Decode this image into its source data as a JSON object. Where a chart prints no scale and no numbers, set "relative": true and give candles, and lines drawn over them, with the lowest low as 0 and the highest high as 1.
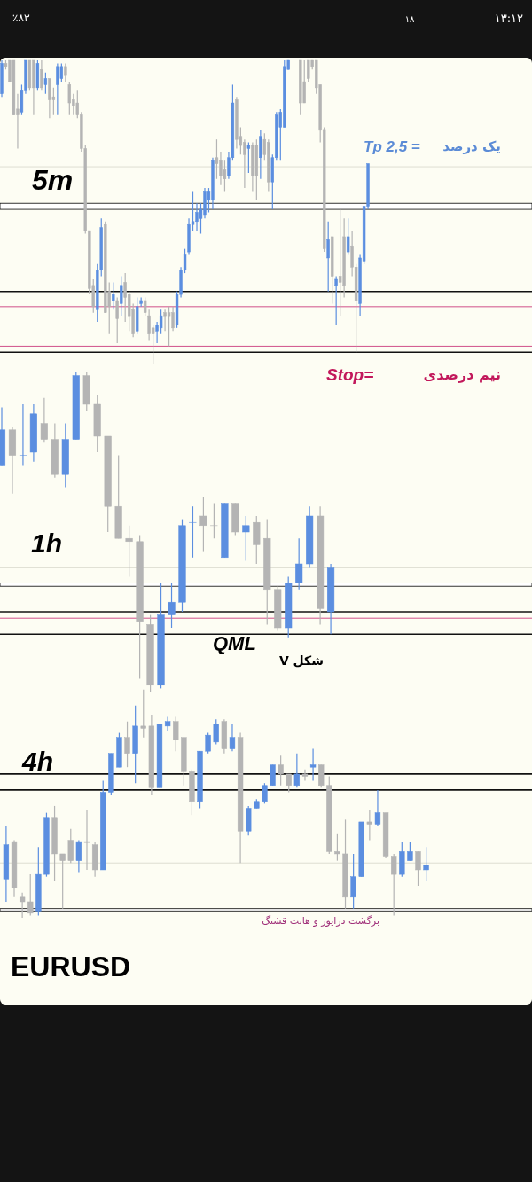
{
  "chart_data": [
    {
      "type": "candlestick",
      "title": "5m",
      "relative": true,
      "categories": [
        null,
        null,
        null,
        null,
        null,
        null,
        null,
        null,
        null,
        null,
        null,
        null,
        null,
        null,
        null,
        null,
        null,
        null,
        null,
        null,
        null,
        null,
        null,
        null,
        null,
        null,
        null,
        null,
        null,
        null,
        null,
        null,
        null,
        null,
        null,
        null,
        null,
        null,
        null,
        null,
        null,
        null,
        null,
        null,
        null,
        null,
        null,
        null,
        null,
        null,
        null,
        null,
        null,
        null,
        null,
        null,
        null,
        null,
        null,
        null,
        null,
        null,
        null,
        null,
        null,
        null,
        null,
        null,
        null,
        null,
        null,
        null,
        null,
        null,
        null,
        null,
        null,
        null,
        null,
        null,
        null,
        null,
        null,
        null,
        null,
        null,
        null,
        null,
        null,
        null,
        null,
        null,
        null
      ],
      "ohlc": [
        [
          0.89,
          1,
          0.88,
          0.99
        ],
        [
          0.99,
          1,
          0.97,
          0.98
        ],
        [
          1,
          1,
          0.93,
          0.93
        ],
        [
          1,
          1,
          0.82,
          0.82
        ],
        [
          0.84,
          0.89,
          0.71,
          0.82
        ],
        [
          0.83,
          0.92,
          0.82,
          0.9
        ],
        [
          0.9,
          1,
          0.89,
          1
        ],
        [
          1,
          1,
          0.9,
          0.91
        ],
        [
          1,
          1,
          0.82,
          0.91
        ],
        [
          0.91,
          1,
          0.9,
          0.99
        ],
        [
          0.97,
          1,
          0.9,
          0.91
        ],
        [
          0.92,
          0.96,
          0.89,
          0.94
        ],
        [
          0.94,
          0.94,
          0.81,
          0.87
        ],
        [
          0.88,
          0.91,
          0.82,
          0.87
        ],
        [
          0.92,
          0.99,
          0.82,
          0.98
        ],
        [
          0.94,
          0.99,
          0.93,
          0.98
        ],
        [
          0.98,
          0.99,
          0.93,
          0.95
        ],
        [
          0.92,
          0.93,
          0.82,
          0.86
        ],
        [
          0.87,
          0.89,
          0.82,
          0.85
        ],
        [
          0.86,
          0.9,
          0.81,
          0.82
        ],
        [
          0.82,
          0.83,
          0.7,
          0.71
        ],
        [
          0.71,
          0.72,
          0.43,
          0.44
        ],
        [
          0.44,
          0.44,
          0.23,
          0.25
        ],
        [
          0.26,
          0.28,
          0.17,
          0.19
        ],
        [
          0.18,
          0.33,
          0.14,
          0.31
        ],
        [
          0.31,
          0.48,
          0.29,
          0.45
        ],
        [
          0.46,
          0.47,
          0.17,
          0.17
        ],
        [
          0.24,
          0.27,
          0.1,
          0.19
        ],
        [
          0.21,
          0.27,
          0.18,
          0.23
        ],
        [
          0.21,
          0.22,
          0.07,
          0.15
        ],
        [
          0.2,
          0.29,
          0.16,
          0.26
        ],
        [
          0.27,
          0.3,
          0.14,
          0.22
        ],
        [
          0.23,
          0.24,
          0.11,
          0.16
        ],
        [
          0.18,
          0.2,
          0.09,
          0.1
        ],
        [
          0.11,
          0.22,
          0.1,
          0.19
        ],
        [
          0.2,
          0.22,
          0.19,
          0.21
        ],
        [
          0.21,
          0.22,
          0.16,
          0.17
        ],
        [
          0.16,
          0.18,
          0.08,
          0.1
        ],
        [
          0.12,
          0.13,
          0,
          0.1
        ],
        [
          0.11,
          0.14,
          0.07,
          0.13
        ],
        [
          0.12,
          0.18,
          0.1,
          0.16
        ],
        [
          0.17,
          0.18,
          0.11,
          0.16
        ],
        [
          0.17,
          0.19,
          0.06,
          0.16
        ],
        [
          0.17,
          0.19,
          0.11,
          0.12
        ],
        [
          0.13,
          0.24,
          0.12,
          0.23
        ],
        [
          0.23,
          0.32,
          0.22,
          0.31
        ],
        [
          0.31,
          0.38,
          0.3,
          0.36
        ],
        [
          0.37,
          0.48,
          0.36,
          0.46
        ],
        [
          0.46,
          0.57,
          0.44,
          0.47
        ],
        [
          0.47,
          0.53,
          0.44,
          0.5
        ],
        [
          0.48,
          0.53,
          0.43,
          0.51
        ],
        [
          0.49,
          0.58,
          0.48,
          0.57
        ],
        [
          0.54,
          0.58,
          0.5,
          0.57
        ],
        [
          0.54,
          0.68,
          0.51,
          0.67
        ],
        [
          0.68,
          0.74,
          0.61,
          0.66
        ],
        [
          0.67,
          0.7,
          0.59,
          0.62
        ],
        [
          0.64,
          0.67,
          0.57,
          0.61
        ],
        [
          0.62,
          0.7,
          0.61,
          0.68
        ],
        [
          0.68,
          0.92,
          0.67,
          0.86
        ],
        [
          0.87,
          0.88,
          0.71,
          0.74
        ],
        [
          0.75,
          0.78,
          0.69,
          0.72
        ],
        [
          0.73,
          0.74,
          0.58,
          0.69
        ],
        [
          0.71,
          0.73,
          0.63,
          0.72
        ],
        [
          0.72,
          0.73,
          0.57,
          0.62
        ],
        [
          0.72,
          0.74,
          0.54,
          0.62
        ],
        [
          0.68,
          0.77,
          0.61,
          0.75
        ],
        [
          0.74,
          0.76,
          0.67,
          0.69
        ],
        [
          0.73,
          0.74,
          0.57,
          0.6
        ],
        [
          0.6,
          0.69,
          0.51,
          0.68
        ],
        [
          0.68,
          0.83,
          0.67,
          0.82
        ],
        [
          0.78,
          0.84,
          0.67,
          0.83
        ],
        [
          0.78,
          1,
          0.78,
          0.98
        ],
        [
          0.97,
          1,
          0.97,
          1
        ],
        null,
        null,
        [
          1,
          1,
          0.82,
          0.86
        ],
        [
          0.93,
          1,
          0.86,
          0.86
        ],
        [
          1,
          1,
          0.93,
          0.94
        ],
        [
          1,
          1,
          0.97,
          0.98
        ],
        [
          1,
          1,
          0.89,
          0.91
        ],
        [
          0.92,
          0.92,
          0.73,
          0.77
        ],
        [
          0.77,
          0.78,
          0.37,
          0.38
        ],
        [
          0.35,
          0.47,
          0.24,
          0.41
        ],
        [
          0.42,
          0.42,
          0.2,
          0.29
        ],
        [
          0.26,
          0.29,
          0.13,
          0.28
        ],
        [
          0.29,
          0.51,
          0.16,
          0.27
        ],
        [
          0.42,
          0.48,
          0.22,
          0.26
        ],
        [
          0.37,
          0.48,
          0.36,
          0.42
        ],
        [
          0.39,
          0.44,
          0.29,
          0.32
        ],
        [
          0.32,
          0.33,
          0.04,
          0.21
        ],
        [
          0.2,
          0.36,
          0.16,
          0.35
        ],
        [
          0.34,
          0.52,
          0.33,
          0.52
        ],
        [
          0.52,
          0.66,
          0.51,
          0.66
        ]
      ],
      "colors": [
        "#5b8ee0",
        "#b4b4b4",
        "#b4b4b4",
        "#b4b4b4",
        "#b4b4b4",
        "#5b8ee0",
        "#5b8ee0",
        "#b4b4b4",
        "#b4b4b4",
        "#5b8ee0",
        "#b4b4b4",
        "#5b8ee0",
        "#b4b4b4",
        "#b4b4b4",
        "#5b8ee0",
        "#5b8ee0",
        "#b4b4b4",
        "#b4b4b4",
        "#b4b4b4",
        "#b4b4b4",
        "#b4b4b4",
        "#b4b4b4",
        "#b4b4b4",
        "#b4b4b4",
        "#5b8ee0",
        "#5b8ee0",
        "#b4b4b4",
        "#b4b4b4",
        "#5b8ee0",
        "#b4b4b4",
        "#5b8ee0",
        "#b4b4b4",
        "#b4b4b4",
        "#b4b4b4",
        "#5b8ee0",
        "#5b8ee0",
        "#b4b4b4",
        "#b4b4b4",
        "#b4b4b4",
        "#5b8ee0",
        "#5b8ee0",
        "#b4b4b4",
        "#b4b4b4",
        "#b4b4b4",
        "#5b8ee0",
        "#5b8ee0",
        "#5b8ee0",
        "#5b8ee0",
        "#5b8ee0",
        "#5b8ee0",
        "#5b8ee0",
        "#5b8ee0",
        "#5b8ee0",
        "#5b8ee0",
        "#b4b4b4",
        "#b4b4b4",
        "#b4b4b4",
        "#5b8ee0",
        "#5b8ee0",
        "#b4b4b4",
        "#b4b4b4",
        "#b4b4b4",
        "#5b8ee0",
        "#b4b4b4",
        "#b4b4b4",
        "#5b8ee0",
        "#b4b4b4",
        "#b4b4b4",
        "#5b8ee0",
        "#5b8ee0",
        "#5b8ee0",
        "#5b8ee0",
        "#5b8ee0",
        null,
        null,
        "#b4b4b4",
        "#b4b4b4",
        "#b4b4b4",
        "#b4b4b4",
        "#b4b4b4",
        "#b4b4b4",
        "#b4b4b4",
        "#5b8ee0",
        "#b4b4b4",
        "#5b8ee0",
        "#b4b4b4",
        "#b4b4b4",
        "#5b8ee0",
        "#b4b4b4",
        "#b4b4b4",
        "#5b8ee0",
        "#5b8ee0",
        "#5b8ee0"
      ],
      "ref_lines": [
        {
          "axis": "y",
          "value": 0.65,
          "color": "#c9c9bc"
        },
        {
          "axis": "y",
          "value": 0.24,
          "color": "#111111"
        },
        {
          "axis": "y",
          "value": 0.19,
          "color": "#d0508a"
        },
        {
          "axis": "y",
          "value": 0.06,
          "color": "#d0508a"
        },
        {
          "axis": "y",
          "value": 0.04,
          "color": "#111111"
        }
      ],
      "bands": [
        {
          "axis": "y",
          "from": 0.51,
          "to": 0.53,
          "color": "#ffffff"
        }
      ],
      "annotations": [
        "Tp 2,5 =",
        "یک درصد",
        "Stop=",
        "نیم درصدی",
        "٪۸۳",
        "۱۸",
        "۱۳:۱۲"
      ]
    },
    {
      "type": "candlestick",
      "title": "1h",
      "relative": true,
      "categories": [
        null,
        null,
        null,
        null,
        null,
        null,
        null,
        null,
        null,
        null,
        null,
        null,
        null,
        null,
        null,
        null,
        null,
        null,
        null,
        null,
        null,
        null,
        null,
        null,
        null,
        null,
        null,
        null,
        null,
        null,
        null,
        null
      ],
      "ohlc": [
        [
          0.71,
          0.89,
          0.71,
          0.82
        ],
        [
          0.82,
          0.83,
          0.62,
          0.74
        ],
        [
          0.74,
          0.9,
          0.71,
          0.74
        ],
        [
          0.75,
          0.9,
          0.72,
          0.87
        ],
        [
          0.84,
          0.92,
          0.78,
          0.79
        ],
        [
          0.79,
          0.84,
          0.67,
          0.68
        ],
        [
          0.68,
          0.84,
          0.64,
          0.79
        ],
        [
          0.79,
          1,
          0.79,
          0.99
        ],
        [
          0.99,
          1,
          0.88,
          0.9
        ],
        [
          0.9,
          0.93,
          0.75,
          0.8
        ],
        [
          0.8,
          0.8,
          0.5,
          0.58
        ],
        [
          0.58,
          0.74,
          0.48,
          0.48
        ],
        [
          0.48,
          0.52,
          0.36,
          0.47
        ],
        [
          0.47,
          0.49,
          0.04,
          0.22
        ],
        [
          0.21,
          0.24,
          0,
          0.02
        ],
        [
          0.02,
          0.34,
          0.01,
          0.24
        ],
        [
          0.24,
          0.34,
          0.2,
          0.28
        ],
        [
          0.28,
          0.54,
          0.25,
          0.52
        ],
        [
          0.53,
          0.58,
          0.42,
          0.53
        ],
        [
          0.55,
          0.61,
          0.44,
          0.52
        ],
        [
          0.52,
          0.59,
          0.48,
          0.52
        ],
        [
          0.42,
          0.59,
          0.42,
          0.59
        ],
        [
          0.59,
          0.59,
          0.49,
          0.5
        ],
        [
          0.5,
          0.55,
          0.41,
          0.52
        ],
        [
          0.53,
          0.55,
          0.4,
          0.46
        ],
        [
          0.48,
          0.54,
          0.21,
          0.32
        ],
        [
          0.32,
          0.33,
          0.19,
          0.2
        ],
        [
          0.2,
          0.36,
          0.17,
          0.34
        ],
        [
          0.34,
          0.48,
          0.32,
          0.4
        ],
        [
          0.4,
          0.58,
          0.39,
          0.55
        ],
        [
          0.55,
          0.58,
          0.21,
          0.26
        ],
        [
          0.25,
          0.4,
          0.18,
          0.39
        ]
      ],
      "colors": [
        "#5b8ee0",
        "#b4b4b4",
        "#5b8ee0",
        "#5b8ee0",
        "#b4b4b4",
        "#b4b4b4",
        "#5b8ee0",
        "#5b8ee0",
        "#b4b4b4",
        "#b4b4b4",
        "#b4b4b4",
        "#b4b4b4",
        "#b4b4b4",
        "#b4b4b4",
        "#b4b4b4",
        "#5b8ee0",
        "#5b8ee0",
        "#5b8ee0",
        "#5b8ee0",
        "#b4b4b4",
        "#b4b4b4",
        "#5b8ee0",
        "#b4b4b4",
        "#5b8ee0",
        "#b4b4b4",
        "#b4b4b4",
        "#b4b4b4",
        "#5b8ee0",
        "#5b8ee0",
        "#5b8ee0",
        "#b4b4b4",
        "#5b8ee0"
      ],
      "ref_lines": [
        {
          "axis": "y",
          "value": 0.39,
          "color": "#c9c9bc"
        },
        {
          "axis": "y",
          "value": 0.25,
          "color": "#111111"
        },
        {
          "axis": "y",
          "value": 0.23,
          "color": "#d0508a"
        },
        {
          "axis": "y",
          "value": 0.18,
          "color": "#111111"
        }
      ],
      "bands": [
        {
          "axis": "y",
          "from": 0.33,
          "to": 0.34,
          "color": "#ffffff"
        }
      ],
      "annotations": [
        "QML",
        "شکل V"
      ]
    },
    {
      "type": "candlestick",
      "title": "4h",
      "relative": true,
      "categories": [
        null,
        null,
        null,
        null,
        null,
        null,
        null,
        null,
        null,
        null,
        null,
        null,
        null,
        null,
        null,
        null,
        null,
        null,
        null,
        null,
        null,
        null,
        null,
        null,
        null,
        null,
        null,
        null,
        null,
        null,
        null,
        null,
        null,
        null,
        null,
        null,
        null,
        null,
        null,
        null,
        null,
        null,
        null,
        null,
        null,
        null,
        null,
        null,
        null,
        null,
        null,
        null,
        null
      ],
      "ohlc": [
        [
          0.17,
          0.4,
          0.07,
          0.32
        ],
        [
          0.33,
          0.34,
          0.09,
          0.13
        ],
        [
          0.09,
          0.11,
          0,
          0.07
        ],
        [
          0.07,
          0.19,
          0.01,
          0.02
        ],
        [
          0.03,
          0.31,
          0.01,
          0.19
        ],
        [
          0.19,
          0.46,
          0.18,
          0.44
        ],
        [
          0.44,
          0.49,
          0.16,
          0.28
        ],
        [
          0.28,
          0.28,
          0.04,
          0.25
        ],
        [
          0.34,
          0.39,
          0.24,
          0.25
        ],
        [
          0.25,
          0.34,
          0.2,
          0.33
        ],
        [
          0.33,
          0.47,
          0.21,
          0.33
        ],
        [
          0.32,
          0.33,
          0.18,
          0.21
        ],
        [
          0.21,
          0.6,
          0.21,
          0.55
        ],
        [
          0.55,
          0.72,
          0.54,
          0.72
        ],
        [
          0.66,
          0.81,
          0.66,
          0.79
        ],
        [
          0.79,
          0.86,
          0.66,
          0.72
        ],
        [
          0.72,
          0.93,
          0.59,
          0.84
        ],
        [
          0.84,
          1,
          0.79,
          0.83
        ],
        [
          0.84,
          0.89,
          0.54,
          0.57
        ],
        [
          0.57,
          0.85,
          0.57,
          0.85
        ],
        [
          0.84,
          0.88,
          0.82,
          0.86
        ],
        [
          0.86,
          0.88,
          0.73,
          0.78
        ],
        [
          0.79,
          0.79,
          0.58,
          0.64
        ],
        [
          0.64,
          0.65,
          0.45,
          0.51
        ],
        [
          0.51,
          0.73,
          0.48,
          0.73
        ],
        [
          0.73,
          0.81,
          0.72,
          0.8
        ],
        [
          0.77,
          0.87,
          0.76,
          0.85
        ],
        [
          0.86,
          0.87,
          0.72,
          0.74
        ],
        [
          0.74,
          0.85,
          0.73,
          0.79
        ],
        [
          0.79,
          0.81,
          0.24,
          0.38
        ],
        [
          0.38,
          0.49,
          0.36,
          0.48
        ],
        [
          0.48,
          0.52,
          0.48,
          0.51
        ],
        [
          0.51,
          0.59,
          0.5,
          0.58
        ],
        [
          0.58,
          0.67,
          0.58,
          0.67
        ],
        [
          0.67,
          0.71,
          0.58,
          0.63
        ],
        [
          0.63,
          0.63,
          0.55,
          0.58
        ],
        [
          0.58,
          0.72,
          0.57,
          0.63
        ],
        [
          0.63,
          0.65,
          0.6,
          0.62
        ],
        [
          0.66,
          0.74,
          0.6,
          0.67
        ],
        [
          0.67,
          0.67,
          0.57,
          0.58
        ],
        [
          0.58,
          0.62,
          0.28,
          0.29
        ],
        [
          0.29,
          0.37,
          0.25,
          0.28
        ],
        [
          0.28,
          0.43,
          0.04,
          0.09
        ],
        [
          0.09,
          0.28,
          0.04,
          0.18
        ],
        [
          0.18,
          0.42,
          0.18,
          0.42
        ],
        [
          0.42,
          0.47,
          0.34,
          0.41
        ],
        [
          0.41,
          0.56,
          0.4,
          0.46
        ],
        [
          0.46,
          0.46,
          0.26,
          0.27
        ],
        [
          0.27,
          0.28,
          0.01,
          0.19
        ],
        [
          0.19,
          0.33,
          0.18,
          0.29
        ],
        [
          0.25,
          0.33,
          0.25,
          0.29
        ],
        [
          0.29,
          0.29,
          0.14,
          0.21
        ],
        [
          0.21,
          0.31,
          0.16,
          0.23
        ]
      ],
      "colors": [
        "#5b8ee0",
        "#b4b4b4",
        "#b4b4b4",
        "#b4b4b4",
        "#5b8ee0",
        "#5b8ee0",
        "#b4b4b4",
        "#b4b4b4",
        "#b4b4b4",
        "#5b8ee0",
        "#b4b4b4",
        "#b4b4b4",
        "#5b8ee0",
        "#5b8ee0",
        "#5b8ee0",
        "#b4b4b4",
        "#5b8ee0",
        "#b4b4b4",
        "#b4b4b4",
        "#5b8ee0",
        "#5b8ee0",
        "#b4b4b4",
        "#b4b4b4",
        "#b4b4b4",
        "#5b8ee0",
        "#5b8ee0",
        "#5b8ee0",
        "#b4b4b4",
        "#5b8ee0",
        "#b4b4b4",
        "#5b8ee0",
        "#5b8ee0",
        "#5b8ee0",
        "#5b8ee0",
        "#b4b4b4",
        "#b4b4b4",
        "#5b8ee0",
        "#b4b4b4",
        "#5b8ee0",
        "#b4b4b4",
        "#b4b4b4",
        "#b4b4b4",
        "#b4b4b4",
        "#5b8ee0",
        "#5b8ee0",
        "#b4b4b4",
        "#5b8ee0",
        "#b4b4b4",
        "#b4b4b4",
        "#5b8ee0",
        "#5b8ee0",
        "#b4b4b4",
        "#5b8ee0"
      ],
      "ref_lines": [
        {
          "axis": "y",
          "value": 0.24,
          "color": "#c9c9bc"
        },
        {
          "axis": "y",
          "value": 0.63,
          "color": "#111111"
        },
        {
          "axis": "y",
          "value": 0.56,
          "color": "#111111"
        }
      ],
      "bands": [
        {
          "axis": "y",
          "from": 0.03,
          "to": 0.04,
          "color": "#ffffff"
        }
      ],
      "annotations": [
        "برگشت درایور و هانت قشنگ",
        "EURUSD"
      ]
    }
  ]
}
